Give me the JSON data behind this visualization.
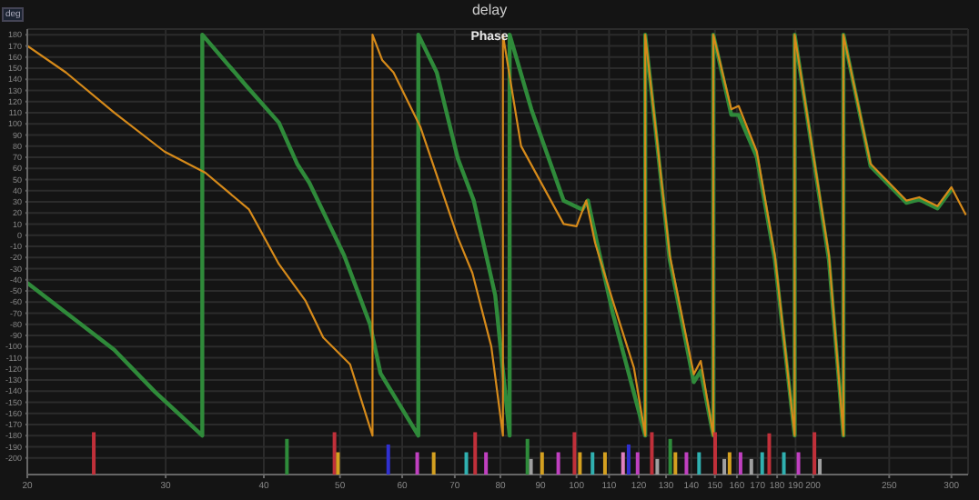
{
  "chart_data": {
    "type": "line",
    "title": "delay",
    "subtitle": "Phase",
    "ylabel": "deg",
    "log": "x",
    "grid": true,
    "marker": "none",
    "xlim": [
      20,
      315
    ],
    "xticks": [
      20,
      30,
      40,
      50,
      60,
      70,
      80,
      90,
      100,
      110,
      120,
      130,
      140,
      150,
      160,
      170,
      180,
      190,
      200,
      250,
      300
    ],
    "ylim": [
      -215,
      185
    ],
    "yticks": [
      -200,
      -190,
      -180,
      -170,
      -160,
      -150,
      -140,
      -130,
      -120,
      -110,
      -100,
      -90,
      -80,
      -70,
      -60,
      -50,
      -40,
      -30,
      -20,
      -10,
      0,
      10,
      20,
      30,
      40,
      50,
      60,
      70,
      80,
      90,
      100,
      110,
      120,
      130,
      140,
      150,
      160,
      170,
      180
    ],
    "series": [
      {
        "color": "#2f8a3a",
        "x": [
          20,
          25.8,
          29.1,
          33.4,
          33.4,
          38,
          41.8,
          44.1,
          45.7,
          50.6,
          54.6,
          56.3,
          62.9,
          62.9,
          66.4,
          70.6,
          74,
          78.8,
          82.2,
          82.2,
          87.6,
          96.3,
          101.7,
          103.4,
          106.2,
          111.2,
          122.3,
          122.3,
          131.4,
          141,
          143.9,
          149.3,
          149.3,
          157.4,
          160.8,
          169.6,
          178.8,
          189.5,
          189.5,
          209.5,
          218.6,
          218.6,
          236.7,
          263,
          273,
          288,
          300
        ],
        "values": [
          -43,
          -103,
          -141,
          -180,
          180,
          134,
          101,
          64,
          47,
          -18,
          -80,
          -124,
          -180,
          180,
          146,
          69,
          31,
          -54,
          -180,
          180,
          113,
          31,
          23,
          31,
          -7,
          -70,
          -180,
          180,
          -22,
          -132,
          -122,
          -180,
          180,
          108,
          108,
          70,
          -22,
          -180,
          180,
          -22,
          -180,
          180,
          62,
          29,
          32,
          24,
          41
        ]
      },
      {
        "color": "#d68a1a",
        "x": [
          20,
          22.4,
          25.8,
          29.9,
          33.7,
          38.3,
          41.8,
          45.2,
          47.6,
          51.5,
          55,
          55,
          56.6,
          58.5,
          63.3,
          66.9,
          70.6,
          73.7,
          77.9,
          80.6,
          80.6,
          85,
          96.3,
          100,
          102.9,
          105.6,
          111.2,
          118.3,
          122.3,
          122.3,
          131.4,
          141,
          143.9,
          149.3,
          149.3,
          157.4,
          160.8,
          169.6,
          178.8,
          189.5,
          189.5,
          209.5,
          218.6,
          218.6,
          236.7,
          263,
          273,
          288,
          300,
          313
        ],
        "values": [
          170,
          146,
          110,
          75,
          56,
          23,
          -26,
          -59,
          -92,
          -116,
          -180,
          180,
          157,
          146,
          97,
          47,
          -2,
          -34,
          -100,
          -180,
          180,
          80,
          10,
          8,
          31,
          -7,
          -59,
          -119,
          -180,
          180,
          -18,
          -125,
          -113,
          -180,
          180,
          113,
          116,
          75,
          -18,
          -180,
          180,
          -18,
          -180,
          180,
          64,
          31,
          34,
          26,
          43,
          18
        ]
      },
      {
        "type": "bar",
        "x": [
          24.3,
          42.8,
          49.2,
          49.7,
          57.6,
          62.7,
          65.8,
          72.4,
          74.3,
          76.7,
          86.6,
          87.5,
          90.4,
          94.8,
          99.4,
          101,
          104.8,
          108.7,
          114.6,
          116.5,
          119.6,
          124.7,
          126.7,
          131.6,
          133.6,
          138,
          143.2,
          150.1,
          154.2,
          156.6,
          161.7,
          166.9,
          172.3,
          175.9,
          183.6,
          191.6,
          200.8,
          204
        ],
        "base": [
          -215,
          -215,
          -215,
          -215,
          -215,
          -215,
          -215,
          -215,
          -215,
          -215,
          -215,
          -215,
          -215,
          -215,
          -215,
          -215,
          -215,
          -215,
          -215,
          -215,
          -215,
          -215,
          -215,
          -215,
          -215,
          -215,
          -215,
          -215,
          -215,
          -215,
          -215,
          -215,
          -215,
          -215,
          -215,
          -215,
          -215,
          -215
        ],
        "values": [
          38,
          32,
          38,
          20,
          27,
          20,
          20,
          20,
          38,
          20,
          32,
          14,
          20,
          20,
          38,
          20,
          20,
          20,
          20,
          27,
          20,
          38,
          14,
          32,
          20,
          20,
          20,
          38,
          14,
          20,
          20,
          14,
          20,
          37,
          20,
          20,
          38,
          14
        ],
        "colors": [
          "#c0303a",
          "#2e8b3a",
          "#c0303a",
          "#d4a020",
          "#3030d0",
          "#c040c0",
          "#d4a020",
          "#30b0b0",
          "#c0303a",
          "#c040c0",
          "#2e8b3a",
          "#a0a0a0",
          "#d4a020",
          "#c040c0",
          "#c0303a",
          "#d4a020",
          "#30b0b0",
          "#d4a020",
          "#e080c0",
          "#3030d0",
          "#c040c0",
          "#c0303a",
          "#a0a0a0",
          "#2e8b3a",
          "#d4a020",
          "#c040c0",
          "#30b0b0",
          "#c0303a",
          "#a0a0a0",
          "#d4a020",
          "#c040c0",
          "#a0a0a0",
          "#30b0b0",
          "#c0303a",
          "#30b0b0",
          "#c040c0",
          "#c0303a",
          "#a0a0a0"
        ]
      }
    ]
  }
}
